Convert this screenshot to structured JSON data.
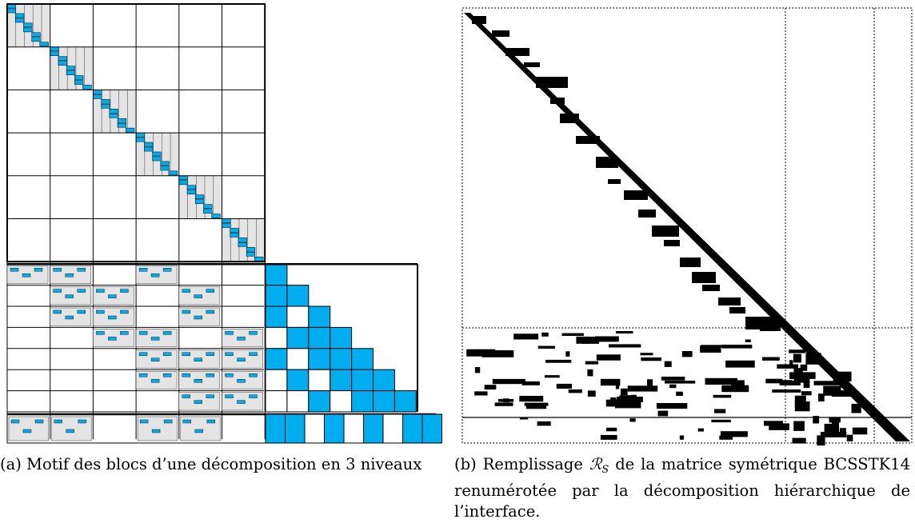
{
  "figure": {
    "panel_a": {
      "caption_label": "(a)",
      "caption_text": "Motif des blocs d’une décomposition en 3 niveaux",
      "colors": {
        "fill_block": "#00AEEF",
        "subdomain_shade": "#E4E4E4",
        "grid": "#000000"
      }
    },
    "panel_b": {
      "caption_label": "(b)",
      "caption_text_1": "Remplissage",
      "caption_symbol": "ℛ",
      "caption_subscript": "S",
      "caption_text_2": "de la matrice symétrique BCSSTK14 renumérotée par la décomposition hiérarchique de l’interface.",
      "colors": {
        "fill": "#000000",
        "separator": "#000000"
      }
    }
  }
}
